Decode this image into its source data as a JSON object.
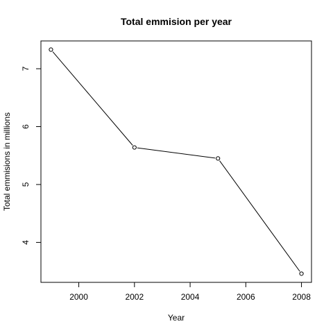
{
  "chart_data": {
    "type": "line",
    "title": "Total emmision per year",
    "xlabel": "Year",
    "ylabel": "Total emmisions in millions",
    "x": [
      1999,
      2002,
      2005,
      2008
    ],
    "series": [
      {
        "values": [
          7.33,
          5.64,
          5.45,
          3.46
        ],
        "color": "#000000",
        "marker": "open-circle"
      }
    ],
    "xlim": [
      1998.64,
      2008.36
    ],
    "ylim": [
      3.31,
      7.48
    ],
    "x_ticks": [
      2000,
      2002,
      2004,
      2006,
      2008
    ],
    "x_tick_labels": [
      "2000",
      "2002",
      "2004",
      "2006",
      "2008"
    ],
    "y_ticks": [
      4,
      5,
      6,
      7
    ],
    "y_tick_labels": [
      "4",
      "5",
      "6",
      "7"
    ],
    "grid": false,
    "legend": "none"
  }
}
